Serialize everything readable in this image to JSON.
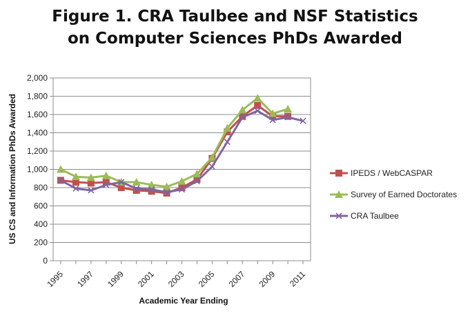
{
  "chart_data": {
    "type": "line",
    "title_line1": "Figure 1. CRA Taulbee and NSF Statistics",
    "title_line2": "on Computer Sciences PhDs Awarded",
    "xlabel": "Academic Year Ending",
    "ylabel": "US CS and Information PhDs Awarded",
    "x": [
      1995,
      1996,
      1997,
      1998,
      1999,
      2000,
      2001,
      2002,
      2003,
      2004,
      2005,
      2006,
      2007,
      2008,
      2009,
      2010,
      2011
    ],
    "x_tick_labels": [
      "1995",
      "1997",
      "1999",
      "2001",
      "2003",
      "2005",
      "2007",
      "2009",
      "2011"
    ],
    "y_tick_labels": [
      "0",
      "200",
      "400",
      "600",
      "800",
      "1,000",
      "1,200",
      "1,400",
      "1,600",
      "1,800",
      "2,000"
    ],
    "ylim": [
      0,
      2000
    ],
    "grid": true,
    "legend_position": "right",
    "series": [
      {
        "name": "IPEDS / WebCASPAR",
        "color": "#c0504d",
        "marker": "square",
        "values": [
          880,
          860,
          850,
          860,
          800,
          770,
          760,
          740,
          800,
          890,
          1120,
          1410,
          1580,
          1700,
          1580,
          1580,
          null
        ]
      },
      {
        "name": "Survey of Earned Doctorates",
        "color": "#9bbb59",
        "marker": "triangle",
        "values": [
          1000,
          920,
          910,
          930,
          860,
          860,
          830,
          810,
          870,
          950,
          1130,
          1450,
          1650,
          1780,
          1610,
          1660,
          null
        ]
      },
      {
        "name": "CRA Taulbee",
        "color": "#8064a2",
        "marker": "x",
        "values": [
          880,
          790,
          770,
          830,
          860,
          790,
          780,
          750,
          780,
          870,
          1030,
          1300,
          1570,
          1640,
          1540,
          1570,
          1530
        ]
      }
    ]
  }
}
